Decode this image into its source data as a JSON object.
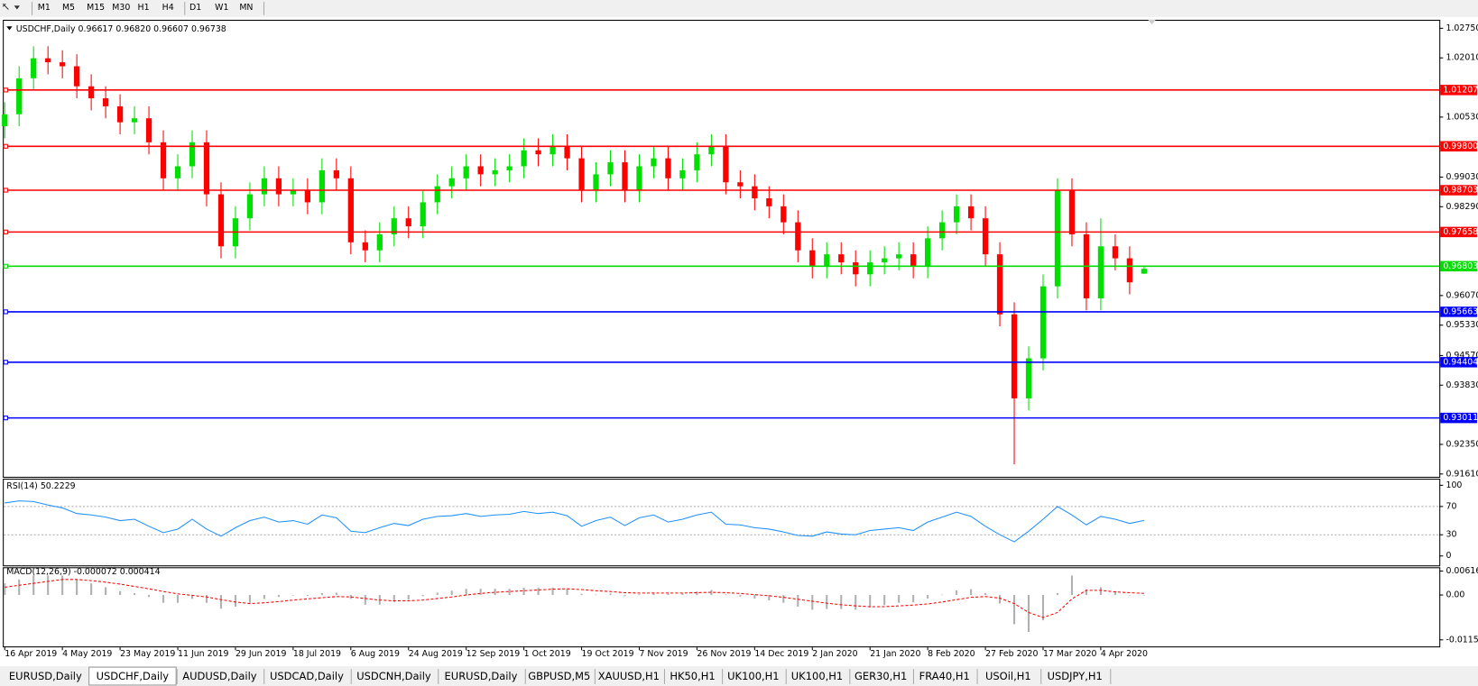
{
  "toolbar": {
    "timeframes": [
      "M1",
      "M5",
      "M15",
      "M30",
      "H1",
      "H4",
      "D1",
      "W1",
      "MN"
    ]
  },
  "tabs": [
    {
      "label": "EURUSD,Daily",
      "active": false
    },
    {
      "label": "USDCHF,Daily",
      "active": true
    },
    {
      "label": "AUDUSD,Daily",
      "active": false
    },
    {
      "label": "USDCAD,Daily",
      "active": false
    },
    {
      "label": "USDCNH,Daily",
      "active": false
    },
    {
      "label": "EURUSD,Daily",
      "active": false
    },
    {
      "label": "GBPUSD,M5",
      "active": false
    },
    {
      "label": "XAUUSD,H1",
      "active": false
    },
    {
      "label": "HK50,H1",
      "active": false
    },
    {
      "label": "UK100,H1",
      "active": false
    },
    {
      "label": "UK100,H1",
      "active": false
    },
    {
      "label": "GER30,H1",
      "active": false
    },
    {
      "label": "FRA40,H1",
      "active": false
    },
    {
      "label": "USOil,H1",
      "active": false
    },
    {
      "label": "USDJPY,H1",
      "active": false
    }
  ],
  "chart_data": [
    {
      "type": "candlestick",
      "title": "USDCHF,Daily  0.96617 0.96820 0.96607 0.96738",
      "categories": [
        "16 Apr 2019",
        null,
        null,
        null,
        "4 May 2019",
        null,
        null,
        null,
        "23 May 2019",
        null,
        null,
        null,
        "11 Jun 2019",
        null,
        null,
        null,
        "29 Jun 2019",
        null,
        null,
        null,
        "18 Jul 2019",
        null,
        null,
        null,
        "6 Aug 2019",
        null,
        null,
        null,
        "24 Aug 2019",
        null,
        null,
        null,
        "12 Sep 2019",
        null,
        null,
        null,
        "1 Oct 2019",
        null,
        null,
        null,
        "19 Oct 2019",
        null,
        null,
        null,
        "7 Nov 2019",
        null,
        null,
        null,
        "26 Nov 2019",
        null,
        null,
        null,
        "14 Dec 2019",
        null,
        null,
        null,
        "2 Jan 2020",
        null,
        null,
        null,
        "21 Jan 2020",
        null,
        null,
        null,
        "8 Feb 2020",
        null,
        null,
        null,
        "27 Feb 2020",
        null,
        null,
        null,
        "17 Mar 2020",
        null,
        null,
        null,
        "4 Apr 2020",
        null,
        null,
        null
      ],
      "open": [
        1.003,
        1.006,
        1.015,
        1.02,
        1.019,
        1.018,
        1.013,
        1.01,
        1.008,
        1.004,
        1.005,
        0.999,
        0.99,
        0.993,
        0.999,
        0.986,
        0.973,
        0.98,
        0.986,
        0.99,
        0.986,
        0.987,
        0.984,
        0.992,
        0.99,
        0.974,
        0.972,
        0.976,
        0.98,
        0.978,
        0.984,
        0.988,
        0.99,
        0.993,
        0.991,
        0.992,
        0.993,
        0.997,
        0.996,
        0.998,
        0.995,
        0.987,
        0.991,
        0.994,
        0.987,
        0.993,
        0.995,
        0.99,
        0.992,
        0.996,
        0.998,
        0.989,
        0.988,
        0.985,
        0.983,
        0.979,
        0.972,
        0.968,
        0.971,
        0.969,
        0.966,
        0.969,
        0.97,
        0.971,
        0.968,
        0.975,
        0.979,
        0.983,
        0.98,
        0.971,
        0.956,
        0.935,
        0.945,
        0.963,
        0.987,
        0.976,
        0.96,
        0.973,
        0.97,
        0.96617
      ],
      "high": [
        1.009,
        1.018,
        1.023,
        1.023,
        1.022,
        1.021,
        1.016,
        1.013,
        1.011,
        1.008,
        1.008,
        1.002,
        0.996,
        1.002,
        1.002,
        0.989,
        0.983,
        0.989,
        0.993,
        0.993,
        0.99,
        0.99,
        0.995,
        0.995,
        0.993,
        0.977,
        0.979,
        0.983,
        0.983,
        0.987,
        0.991,
        0.993,
        0.996,
        0.996,
        0.995,
        0.996,
        1.0,
        1.0,
        1.001,
        1.001,
        0.998,
        0.994,
        0.997,
        0.997,
        0.996,
        0.998,
        0.998,
        0.995,
        0.999,
        1.001,
        1.001,
        0.992,
        0.991,
        0.988,
        0.986,
        0.982,
        0.975,
        0.974,
        0.974,
        0.972,
        0.972,
        0.973,
        0.974,
        0.974,
        0.978,
        0.982,
        0.986,
        0.986,
        0.983,
        0.974,
        0.959,
        0.948,
        0.966,
        0.99,
        0.99,
        0.979,
        0.98,
        0.976,
        0.973,
        0.9682
      ],
      "low": [
        1.0,
        1.003,
        1.012,
        1.016,
        1.015,
        1.01,
        1.007,
        1.005,
        1.001,
        1.001,
        0.996,
        0.987,
        0.987,
        0.99,
        0.983,
        0.97,
        0.97,
        0.977,
        0.983,
        0.983,
        0.983,
        0.981,
        0.981,
        0.987,
        0.971,
        0.969,
        0.969,
        0.973,
        0.975,
        0.975,
        0.981,
        0.985,
        0.987,
        0.988,
        0.988,
        0.989,
        0.99,
        0.993,
        0.993,
        0.992,
        0.984,
        0.984,
        0.988,
        0.984,
        0.984,
        0.99,
        0.987,
        0.987,
        0.989,
        0.993,
        0.986,
        0.985,
        0.982,
        0.98,
        0.976,
        0.969,
        0.965,
        0.965,
        0.966,
        0.963,
        0.963,
        0.966,
        0.967,
        0.965,
        0.965,
        0.972,
        0.976,
        0.977,
        0.968,
        0.953,
        0.9185,
        0.932,
        0.942,
        0.96,
        0.973,
        0.957,
        0.957,
        0.967,
        0.961,
        0.96607
      ],
      "close": [
        1.006,
        1.015,
        1.02,
        1.019,
        1.018,
        1.013,
        1.01,
        1.008,
        1.004,
        1.005,
        0.999,
        0.99,
        0.993,
        0.999,
        0.986,
        0.973,
        0.98,
        0.986,
        0.99,
        0.986,
        0.987,
        0.984,
        0.992,
        0.99,
        0.974,
        0.972,
        0.976,
        0.98,
        0.978,
        0.984,
        0.988,
        0.99,
        0.993,
        0.991,
        0.992,
        0.993,
        0.997,
        0.996,
        0.998,
        0.995,
        0.987,
        0.991,
        0.994,
        0.987,
        0.993,
        0.995,
        0.99,
        0.992,
        0.996,
        0.998,
        0.989,
        0.988,
        0.985,
        0.983,
        0.979,
        0.972,
        0.968,
        0.971,
        0.969,
        0.966,
        0.969,
        0.97,
        0.971,
        0.968,
        0.975,
        0.979,
        0.983,
        0.98,
        0.971,
        0.956,
        0.935,
        0.945,
        0.963,
        0.987,
        0.976,
        0.96,
        0.973,
        0.97,
        0.964,
        0.96738
      ],
      "up_color": "#00e000",
      "down_color": "#ff0000",
      "ylim": [
        0.9161,
        1.0275
      ],
      "yticks": [
        {
          "value": 0.9161,
          "label": "0.91610"
        },
        {
          "value": 0.9235,
          "label": "0.92350"
        },
        {
          "value": 0.9383,
          "label": "0.93830"
        },
        {
          "value": 0.9457,
          "label": "0.94570"
        },
        {
          "value": 0.9533,
          "label": "0.95330"
        },
        {
          "value": 0.9607,
          "label": "0.96070"
        },
        {
          "value": 0.9829,
          "label": "0.98290"
        },
        {
          "value": 0.9903,
          "label": "0.99030"
        },
        {
          "value": 1.0053,
          "label": "1.00530"
        },
        {
          "value": 1.0201,
          "label": "1.02010"
        },
        {
          "value": 1.0275,
          "label": "1.02750"
        }
      ],
      "levels": [
        {
          "value": 1.01207,
          "label": "1.01207",
          "color": "#ff0000"
        },
        {
          "value": 0.998,
          "label": "0.99800",
          "color": "#ff0000"
        },
        {
          "value": 0.98703,
          "label": "0.98703",
          "color": "#ff0000"
        },
        {
          "value": 0.97658,
          "label": "0.97658",
          "color": "#ff0000"
        },
        {
          "value": 0.96803,
          "label": "0.96803",
          "color": "#00dd00"
        },
        {
          "value": 0.95663,
          "label": "0.95663",
          "color": "#0000ff"
        },
        {
          "value": 0.94404,
          "label": "0.94404",
          "color": "#0000ff"
        },
        {
          "value": 0.93011,
          "label": "0.93011",
          "color": "#0000ff"
        }
      ]
    },
    {
      "type": "line",
      "title": "RSI(14) 50.2229",
      "color": "#1e90ff",
      "values": [
        75,
        78,
        77,
        72,
        68,
        60,
        58,
        55,
        50,
        52,
        42,
        33,
        38,
        52,
        38,
        28,
        40,
        50,
        55,
        48,
        50,
        45,
        58,
        54,
        35,
        33,
        40,
        46,
        43,
        52,
        56,
        57,
        60,
        56,
        58,
        59,
        63,
        60,
        62,
        57,
        42,
        50,
        55,
        43,
        54,
        58,
        48,
        52,
        58,
        62,
        45,
        44,
        40,
        38,
        34,
        29,
        28,
        34,
        31,
        30,
        36,
        38,
        40,
        36,
        48,
        55,
        62,
        56,
        42,
        30,
        20,
        35,
        52,
        70,
        58,
        44,
        56,
        52,
        46,
        50.2229
      ],
      "ylim": [
        0,
        100
      ],
      "yticks": [
        0,
        30,
        70,
        100
      ],
      "levels": [
        30,
        70
      ]
    },
    {
      "type": "macd",
      "title": "MACD(12,26,9) -0.000072 0.000414",
      "histogram": {
        "color": "#b0b0b0",
        "values": [
          0.003,
          0.004,
          0.005,
          0.005,
          0.005,
          0.004,
          0.003,
          0.002,
          0.001,
          0.0005,
          -0.0005,
          -0.002,
          -0.002,
          -0.001,
          -0.002,
          -0.0035,
          -0.003,
          -0.002,
          -0.001,
          -0.0005,
          0,
          -0.0002,
          0.0005,
          0.0006,
          -0.001,
          -0.0025,
          -0.0025,
          -0.0018,
          -0.0012,
          -0.0003,
          0.0006,
          0.0011,
          0.0016,
          0.0016,
          0.0016,
          0.0016,
          0.0019,
          0.0019,
          0.0019,
          0.0016,
          0.0003,
          0.0001,
          0.0004,
          -0.0003,
          0.0002,
          0.0006,
          0.0003,
          0.0004,
          0.0009,
          0.0013,
          0.0002,
          -0.0004,
          -0.0009,
          -0.0014,
          -0.002,
          -0.003,
          -0.0038,
          -0.0036,
          -0.0036,
          -0.0038,
          -0.0032,
          -0.0026,
          -0.002,
          -0.0019,
          -0.0009,
          0.0001,
          0.0012,
          0.0015,
          0.0005,
          -0.0022,
          -0.0075,
          -0.0095,
          -0.0065,
          0.0005,
          0.005,
          0.0015,
          0.002,
          0.001,
          -0.0001,
          -7.2e-05
        ]
      },
      "signal": {
        "color": "#ff0000",
        "values": [
          0.002,
          0.0025,
          0.003,
          0.0035,
          0.004,
          0.004,
          0.0037,
          0.0033,
          0.0028,
          0.0022,
          0.0016,
          0.0009,
          0.0003,
          -0.0001,
          -0.0005,
          -0.0012,
          -0.0018,
          -0.0022,
          -0.002,
          -0.0017,
          -0.0013,
          -0.001,
          -0.0007,
          -0.0004,
          -0.0005,
          -0.0009,
          -0.0013,
          -0.0015,
          -0.0015,
          -0.0013,
          -0.0009,
          -0.0005,
          0,
          0.0004,
          0.0007,
          0.0009,
          0.0011,
          0.0013,
          0.0015,
          0.0016,
          0.0014,
          0.0011,
          0.0009,
          0.0006,
          0.0005,
          0.0005,
          0.0005,
          0.0005,
          0.0006,
          0.0007,
          0.0006,
          0.0004,
          0.0001,
          -0.0002,
          -0.0006,
          -0.0011,
          -0.0016,
          -0.0021,
          -0.0025,
          -0.0028,
          -0.003,
          -0.003,
          -0.0028,
          -0.0026,
          -0.0023,
          -0.0018,
          -0.0012,
          -0.0006,
          -0.0004,
          -0.0008,
          -0.0022,
          -0.0045,
          -0.0058,
          -0.0045,
          -0.001,
          0.0012,
          0.0012,
          0.0008,
          0.0006,
          0.000414
        ]
      },
      "ylim": [
        -0.011533,
        0.006167
      ],
      "yticks": [
        -0.011533,
        {
          "value": 0,
          "label": "0.00"
        },
        0.006167
      ]
    }
  ]
}
